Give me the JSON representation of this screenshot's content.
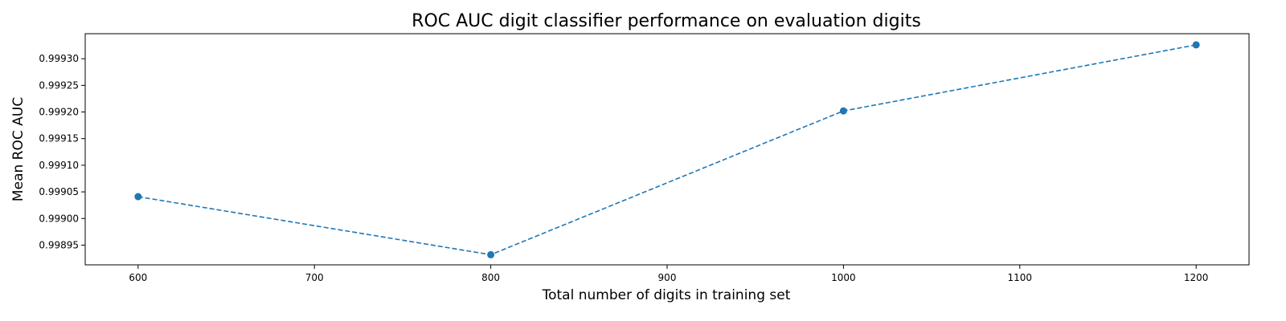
{
  "chart_data": {
    "type": "line",
    "title": "ROC AUC digit classifier performance on evaluation digits",
    "xlabel": "Total number of digits in training set",
    "ylabel": "Mean ROC AUC",
    "xlim": [
      570,
      1230
    ],
    "ylim": [
      0.998913,
      0.999347
    ],
    "x_ticks": [
      "600",
      "700",
      "800",
      "900",
      "1000",
      "1100",
      "1200"
    ],
    "y_ticks": [
      "0.99895",
      "0.99900",
      "0.99905",
      "0.99910",
      "0.99915",
      "0.99920",
      "0.99925",
      "0.99930"
    ],
    "grid": false,
    "series": [
      {
        "x": [
          600,
          800,
          1000,
          1200
        ],
        "y": [
          0.999041,
          0.998932,
          0.999202,
          0.999326
        ],
        "color": "#1f77b4",
        "line_style": "dashed",
        "marker": "circle"
      }
    ]
  }
}
